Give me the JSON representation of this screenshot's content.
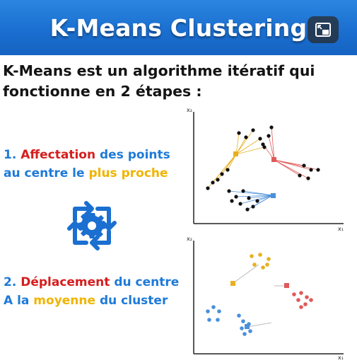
{
  "header": {
    "title": "K-Means Clustering",
    "miniplayer_icon": "miniplayer-icon"
  },
  "intro": {
    "line1": "K-Means est un algorithme itératif qui",
    "line2": "fonctionne en 2 étapes :"
  },
  "step1": {
    "num": "1.",
    "word_red": "Affectation",
    "mid": "des points",
    "line2_prefix": "au centre le",
    "word_yellow": "plus proche"
  },
  "step2": {
    "num": "2.",
    "word_red": "Déplacement",
    "mid": "du centre",
    "line2_prefix": "A la",
    "word_yellow": "moyenne",
    "line2_suffix": "du cluster"
  },
  "icons": {
    "cycle": "cycle-gear-icon"
  },
  "plots": {
    "top": {
      "ylabel": "x₂",
      "xlabel": "x₁"
    },
    "bottom": {
      "ylabel": "x₂",
      "xlabel": "x₁"
    }
  },
  "colors": {
    "header_blue": "#1b6fd0",
    "step_blue": "#1e7ad8",
    "red": "#d41e1e",
    "yellow": "#f0b400",
    "cluster_yellow": "#e8b020",
    "cluster_red": "#e05a5a",
    "cluster_blue": "#4a90d9"
  }
}
